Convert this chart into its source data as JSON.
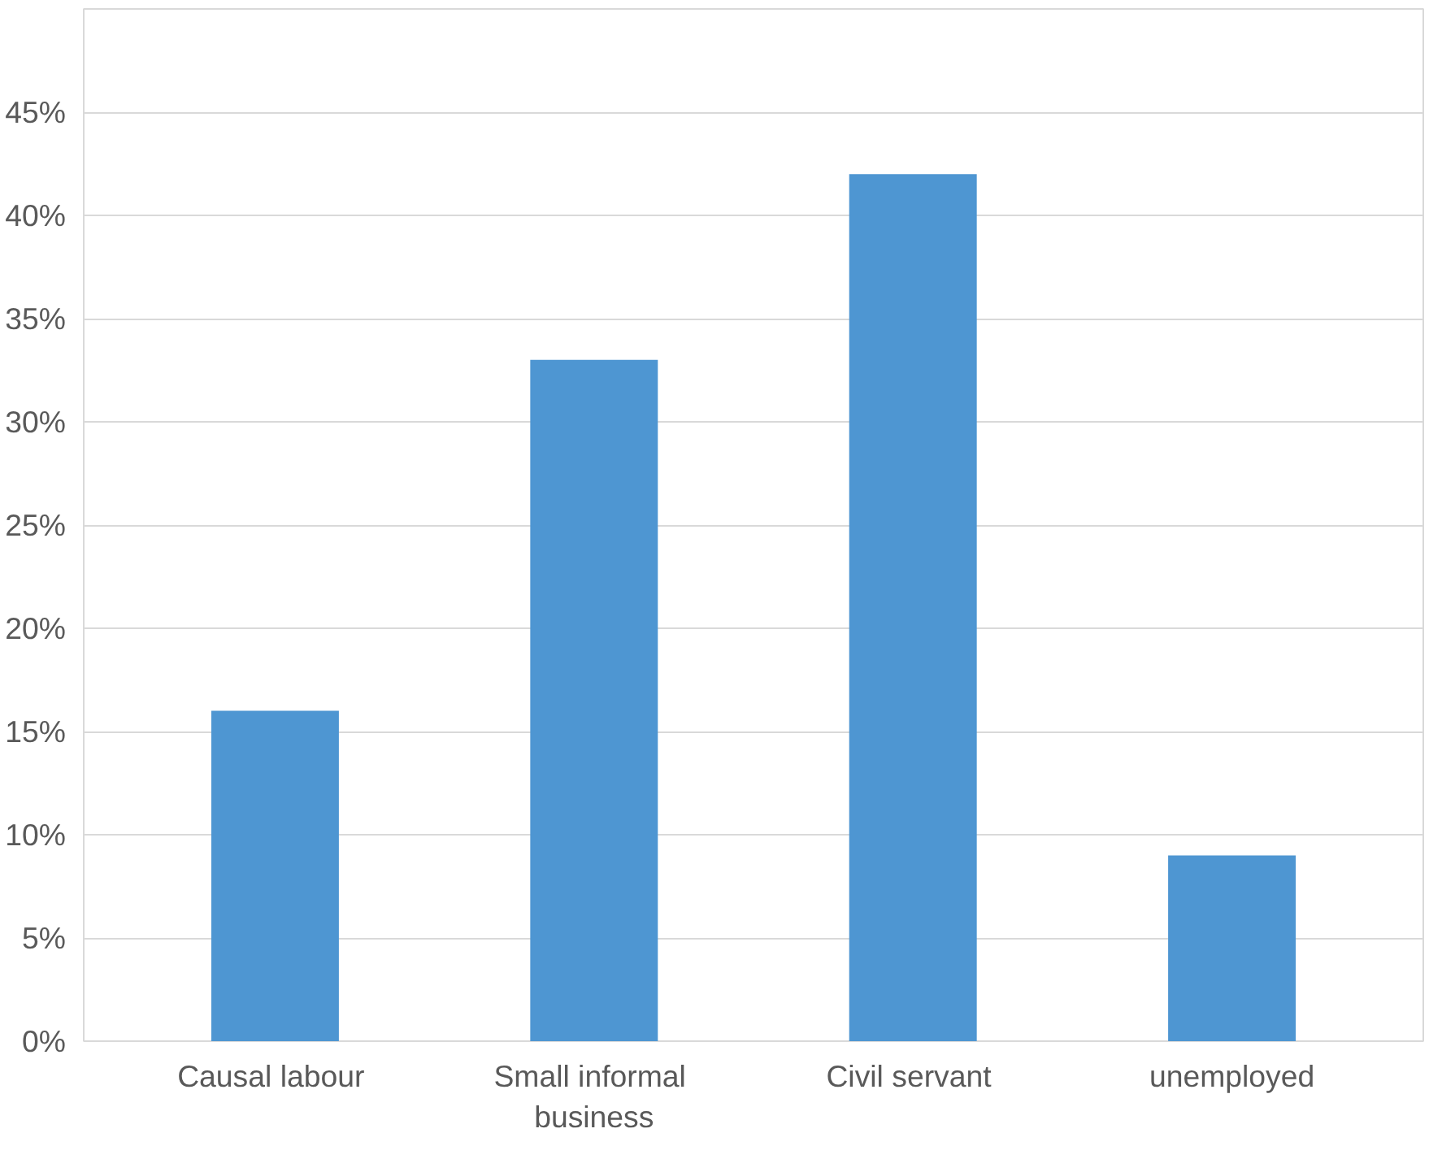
{
  "chart_data": {
    "type": "bar",
    "categories": [
      "Causal  labour",
      "Small  informal business",
      "Civil  servant",
      "unemployed"
    ],
    "values": [
      16,
      33,
      42,
      9
    ],
    "color": "#4e96d2",
    "ylim": [
      0,
      50
    ],
    "yticks": [
      {
        "value": 0,
        "label": "0%"
      },
      {
        "value": 5,
        "label": "5%"
      },
      {
        "value": 10,
        "label": "10%"
      },
      {
        "value": 15,
        "label": "15%"
      },
      {
        "value": 20,
        "label": "20%"
      },
      {
        "value": 25,
        "label": "25%"
      },
      {
        "value": 30,
        "label": "30%"
      },
      {
        "value": 35,
        "label": "35%"
      },
      {
        "value": 40,
        "label": "40%"
      },
      {
        "value": 45,
        "label": "45%"
      }
    ],
    "grid": "y"
  }
}
